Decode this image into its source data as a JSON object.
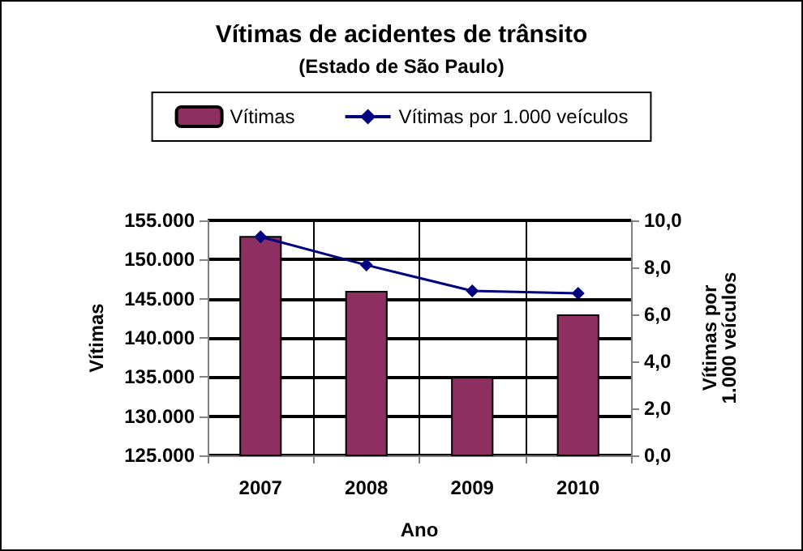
{
  "chart_data": {
    "type": "bar",
    "title": "Vítimas de acidentes de trânsito",
    "subtitle": "(Estado de São Paulo)",
    "xlabel": "Ano",
    "ylabel": "Vítimas",
    "y2label": "Vítimas por\n1.000 veículos",
    "categories": [
      "2007",
      "2008",
      "2009",
      "2010"
    ],
    "series": [
      {
        "name": "Vítimas",
        "color": "#8e2f61",
        "values": [
          153000,
          146000,
          135000,
          143000
        ]
      },
      {
        "name": "Vítimas por 1.000 veículos",
        "type": "line",
        "axis": "y2",
        "color": "#000080",
        "marker": "diamond",
        "values": [
          9.3,
          8.1,
          7.0,
          6.9
        ]
      }
    ],
    "ylim": [
      125000,
      155000
    ],
    "yticks": [
      {
        "value": 125000,
        "label": "125.000"
      },
      {
        "value": 130000,
        "label": "130.000"
      },
      {
        "value": 135000,
        "label": "135.000"
      },
      {
        "value": 140000,
        "label": "140.000"
      },
      {
        "value": 145000,
        "label": "145.000"
      },
      {
        "value": 150000,
        "label": "150.000"
      },
      {
        "value": 155000,
        "label": "155.000"
      }
    ],
    "y2lim": [
      0,
      10
    ],
    "y2ticks": [
      {
        "value": 0,
        "label": "0,0"
      },
      {
        "value": 2,
        "label": "2,0"
      },
      {
        "value": 4,
        "label": "4,0"
      },
      {
        "value": 6,
        "label": "6,0"
      },
      {
        "value": 8,
        "label": "8,0"
      },
      {
        "value": 10,
        "label": "10,0"
      }
    ],
    "grid": true,
    "legend": "top"
  }
}
